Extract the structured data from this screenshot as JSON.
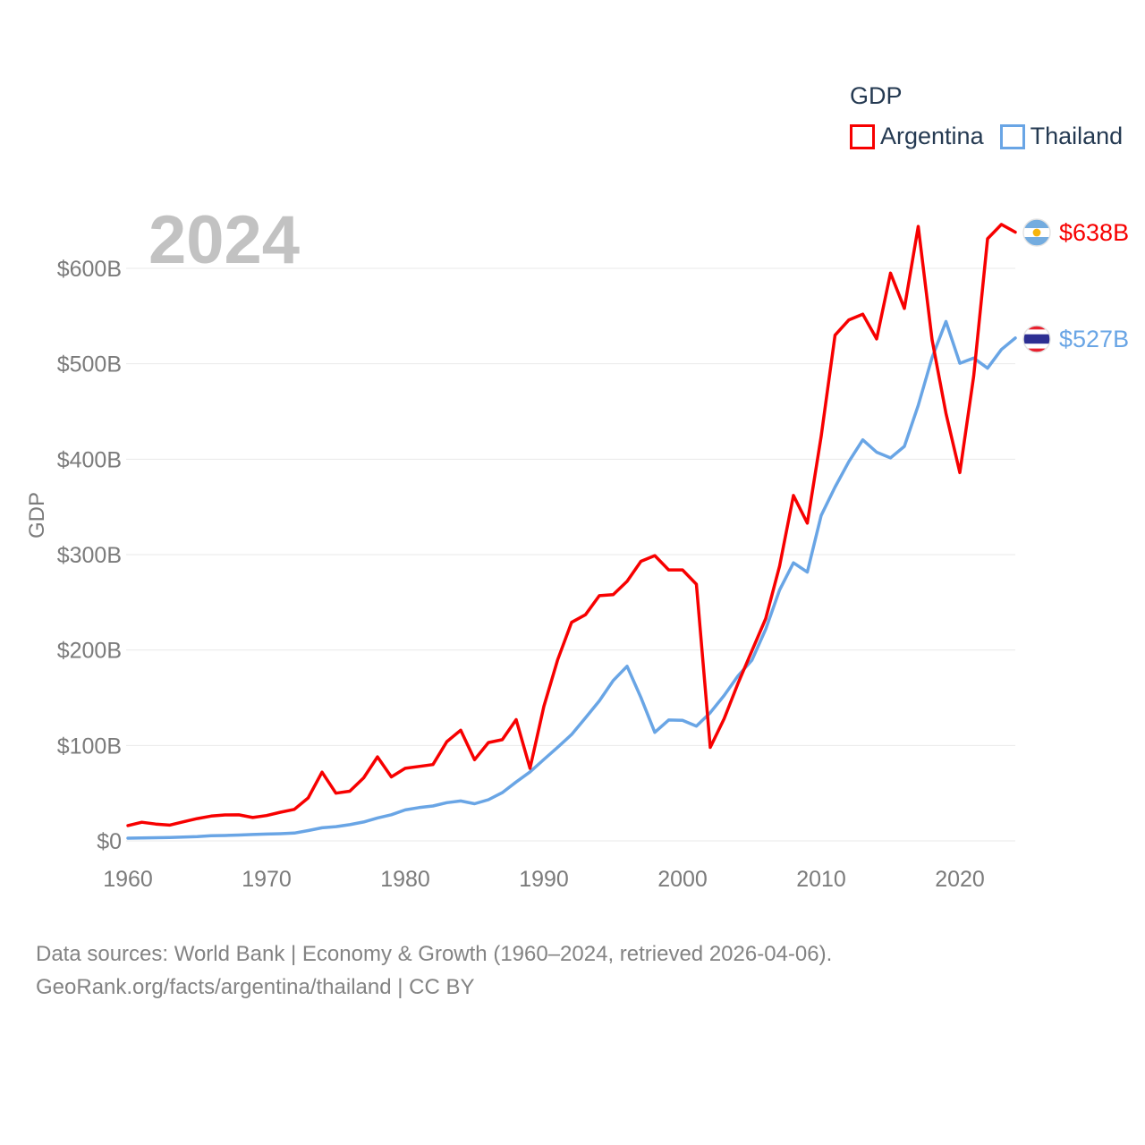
{
  "watermark": "2024",
  "legend": {
    "title": "GDP"
  },
  "footer": {
    "line1": "Data sources: World Bank | Economy & Growth (1960–2024, retrieved 2026-04-06).",
    "line2": "GeoRank.org/facts/argentina/thailand | CC BY"
  },
  "chart_data": {
    "type": "line",
    "title": "GDP",
    "ylabel": "GDP",
    "units": "billions of current USD",
    "xlim": [
      1960,
      2024
    ],
    "ylim": [
      0,
      600
    ],
    "grid": "horizontal",
    "legend_position": "top-right",
    "y_ticks": [
      {
        "label": "$0",
        "value": 0
      },
      {
        "label": "$100B",
        "value": 100
      },
      {
        "label": "$200B",
        "value": 200
      },
      {
        "label": "$300B",
        "value": 300
      },
      {
        "label": "$400B",
        "value": 400
      },
      {
        "label": "$500B",
        "value": 500
      },
      {
        "label": "$600B",
        "value": 600
      }
    ],
    "x_ticks": [
      {
        "label": "1960",
        "value": 1960
      },
      {
        "label": "1970",
        "value": 1970
      },
      {
        "label": "1980",
        "value": 1980
      },
      {
        "label": "1990",
        "value": 1990
      },
      {
        "label": "2000",
        "value": 2000
      },
      {
        "label": "2010",
        "value": 2010
      },
      {
        "label": "2020",
        "value": 2020
      }
    ],
    "years": [
      1960,
      1961,
      1962,
      1963,
      1964,
      1965,
      1966,
      1967,
      1968,
      1969,
      1970,
      1971,
      1972,
      1973,
      1974,
      1975,
      1976,
      1977,
      1978,
      1979,
      1980,
      1981,
      1982,
      1983,
      1984,
      1985,
      1986,
      1987,
      1988,
      1989,
      1990,
      1991,
      1992,
      1993,
      1994,
      1995,
      1996,
      1997,
      1998,
      1999,
      2000,
      2001,
      2002,
      2003,
      2004,
      2005,
      2006,
      2007,
      2008,
      2009,
      2010,
      2011,
      2012,
      2013,
      2014,
      2015,
      2016,
      2017,
      2018,
      2019,
      2020,
      2021,
      2022,
      2023,
      2024
    ],
    "series": [
      {
        "name": "Argentina",
        "color": "#f70000",
        "end_label": "$638B",
        "end_value_billions": 638,
        "values": [
          16,
          19.5,
          17.6,
          16.5,
          20,
          23.3,
          26,
          27.2,
          27.3,
          24.5,
          26.5,
          30,
          33,
          45,
          72,
          50,
          52,
          66,
          88,
          67,
          76,
          78,
          80,
          104,
          116,
          85,
          103,
          106,
          127,
          76,
          141,
          190,
          229,
          237,
          257,
          258,
          272,
          293,
          299,
          284,
          284,
          269,
          98,
          128,
          165,
          199,
          233,
          288,
          362,
          333,
          424,
          530,
          546,
          552,
          526,
          595,
          558,
          644,
          525,
          448,
          386,
          487,
          631,
          646,
          638
        ]
      },
      {
        "name": "Thailand",
        "color": "#69a5e5",
        "end_label": "$527B",
        "end_value_billions": 527,
        "values": [
          2.8,
          3,
          3.3,
          3.5,
          3.9,
          4.4,
          5.3,
          5.6,
          6.1,
          6.7,
          7.1,
          7.5,
          8.2,
          10.8,
          13.7,
          14.9,
          17,
          19.8,
          24,
          27.4,
          32.4,
          34.9,
          36.6,
          40,
          41.8,
          38.9,
          43.1,
          50.5,
          61.7,
          72.3,
          85.3,
          98.2,
          111.5,
          128.9,
          146.7,
          168,
          183,
          150.2,
          113.7,
          126.7,
          126.4,
          120.3,
          134.3,
          152.3,
          172.9,
          189.3,
          221.8,
          262.9,
          291.4,
          281.7,
          341.1,
          370.8,
          397.6,
          420.3,
          407.3,
          401.3,
          413.4,
          456.4,
          506.5,
          544.3,
          500.5,
          506,
          495.4,
          515,
          527
        ]
      }
    ]
  }
}
